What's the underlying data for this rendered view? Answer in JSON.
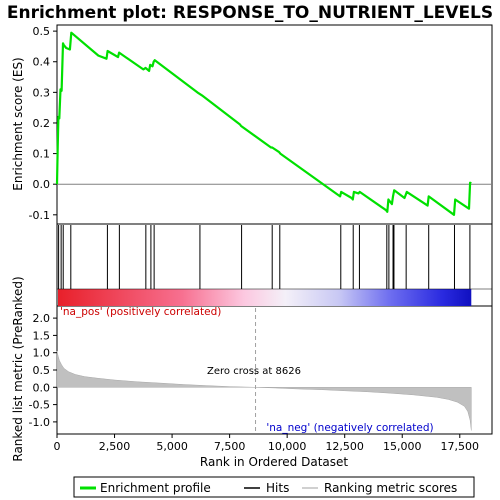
{
  "title": "Enrichment plot: RESPONSE_TO_NUTRIENT_LEVELS",
  "colors": {
    "enrichment_line": "#00e000",
    "hits": "#000000",
    "ranking_fill": "#c0c0c0",
    "zero_line": "#a0a0a0",
    "pos_label": "#cc0000",
    "neg_label": "#0000cc"
  },
  "chart_data": [
    {
      "type": "line",
      "panel": "enrichment_profile",
      "ylabel": "Enrichment score (ES)",
      "ylim": [
        -0.13,
        0.52
      ],
      "xlim": [
        0,
        18900
      ],
      "yticks": [
        -0.1,
        0.0,
        0.1,
        0.2,
        0.3,
        0.4,
        0.5
      ],
      "ytick_labels": [
        "-0.1",
        "0.0",
        "0.1",
        "0.2",
        "0.3",
        "0.4",
        "0.5"
      ],
      "grid": false,
      "series": [
        {
          "name": "Enrichment profile",
          "x": [
            0,
            30,
            60,
            100,
            150,
            200,
            260,
            290,
            400,
            560,
            620,
            700,
            1800,
            2150,
            2200,
            2650,
            2700,
            3750,
            3850,
            4000,
            4050,
            4150,
            4200,
            4250,
            6100,
            6200,
            6300,
            7950,
            8000,
            9300,
            9350,
            9650,
            9700,
            12300,
            12350,
            12800,
            12850,
            12900,
            13100,
            13150,
            14300,
            14350,
            14400,
            14550,
            14600,
            14650,
            15100,
            15150,
            15200,
            16100,
            16150,
            17250,
            17300,
            17900,
            17950,
            18000
          ],
          "y": [
            0.0,
            0.12,
            0.22,
            0.215,
            0.31,
            0.305,
            0.46,
            0.455,
            0.445,
            0.44,
            0.495,
            0.49,
            0.42,
            0.41,
            0.435,
            0.415,
            0.43,
            0.375,
            0.38,
            0.37,
            0.39,
            0.385,
            0.4,
            0.405,
            0.3,
            0.295,
            0.29,
            0.195,
            0.19,
            0.12,
            0.12,
            0.105,
            0.1,
            -0.04,
            -0.025,
            -0.045,
            -0.05,
            -0.025,
            -0.03,
            -0.025,
            -0.085,
            -0.09,
            -0.05,
            -0.065,
            -0.04,
            -0.02,
            -0.045,
            -0.035,
            -0.025,
            -0.07,
            -0.04,
            -0.1,
            -0.05,
            -0.08,
            0.005,
            0.003
          ]
        }
      ]
    },
    {
      "type": "scatter",
      "panel": "hits",
      "series": [
        {
          "name": "Hits",
          "x": [
            70,
            180,
            270,
            600,
            2190,
            2710,
            3860,
            4080,
            4220,
            6210,
            8020,
            9350,
            9680,
            12330,
            12870,
            13140,
            14330,
            14420,
            14600,
            14640,
            15170,
            16150,
            17270,
            17940
          ]
        }
      ]
    },
    {
      "type": "area",
      "panel": "ranked_list_metric",
      "xlabel": "Rank in Ordered Dataset",
      "ylabel": "Ranked list metric (PreRanked)",
      "ylim": [
        -1.35,
        2.35
      ],
      "xlim": [
        0,
        18900
      ],
      "xticks": [
        0,
        2500,
        5000,
        7500,
        10000,
        12500,
        15000,
        17500
      ],
      "xtick_labels": [
        "0",
        "2,500",
        "5,000",
        "7,500",
        "10,000",
        "12,500",
        "15,000",
        "17,500"
      ],
      "yticks": [
        -1.0,
        -0.5,
        0.0,
        0.5,
        1.0,
        1.5,
        2.0
      ],
      "ytick_labels": [
        "-1.0",
        "-0.5",
        "0.0",
        "0.5",
        "1.0",
        "1.5",
        "2.0"
      ],
      "series": [
        {
          "name": "Ranking metric scores",
          "x": [
            0,
            50,
            100,
            200,
            300,
            500,
            800,
            1200,
            1800,
            2500,
            3500,
            4500,
            5500,
            6500,
            7500,
            8626,
            9500,
            10500,
            11500,
            12500,
            13500,
            14500,
            15500,
            16500,
            17000,
            17400,
            17700,
            17850,
            17950,
            18000
          ],
          "y": [
            1.05,
            0.9,
            0.78,
            0.65,
            0.55,
            0.45,
            0.37,
            0.31,
            0.26,
            0.21,
            0.16,
            0.12,
            0.08,
            0.05,
            0.02,
            0.0,
            -0.02,
            -0.05,
            -0.07,
            -0.1,
            -0.13,
            -0.17,
            -0.22,
            -0.29,
            -0.35,
            -0.43,
            -0.55,
            -0.7,
            -0.95,
            -1.25
          ]
        }
      ],
      "annotations": {
        "zero_cross_text": "Zero cross at 8626",
        "zero_cross_x": 8626,
        "pos_text": "'na_pos' (positively correlated)",
        "neg_text": "'na_neg' (negatively correlated)"
      }
    }
  ],
  "legend": {
    "items": [
      {
        "label": "Enrichment profile",
        "color": "#00e000"
      },
      {
        "label": "Hits",
        "color": "#000000"
      },
      {
        "label": "Ranking metric scores",
        "color": "#c0c0c0"
      }
    ]
  }
}
